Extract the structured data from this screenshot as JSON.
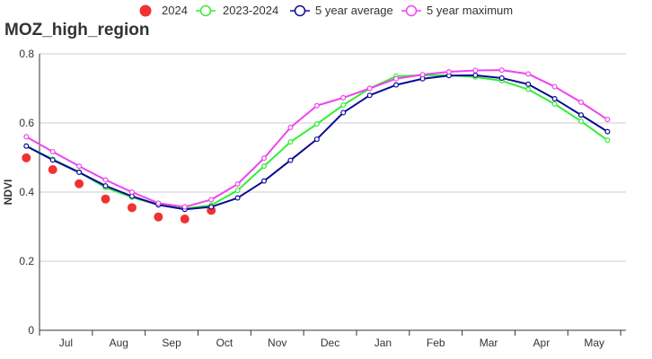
{
  "chart_data": {
    "type": "line",
    "title": "MOZ_high_region",
    "ylabel": "NDVI",
    "xlabel": "",
    "ylim": [
      0,
      0.8
    ],
    "yticks": [
      0,
      0.2,
      0.4,
      0.6,
      0.8
    ],
    "ytick_labels": [
      "0",
      "0.2",
      "0.4",
      "0.6",
      "0.8"
    ],
    "x_start": 0.5,
    "x_end": 22.7,
    "month_labels": [
      "Jul",
      "Aug",
      "Sep",
      "Oct",
      "Nov",
      "Dec",
      "Jan",
      "Feb",
      "Mar",
      "Apr",
      "May"
    ],
    "legend_position": "top",
    "grid": true,
    "series": [
      {
        "name": "2024",
        "style": "dots",
        "color": "#f03232",
        "x": [
          0,
          1,
          2,
          3,
          4,
          5,
          6,
          7
        ],
        "values": [
          0.499,
          0.465,
          0.424,
          0.38,
          0.355,
          0.328,
          0.322,
          0.347
        ]
      },
      {
        "name": "2023-2024",
        "style": "line",
        "color": "#33ee33",
        "x": [
          0,
          1,
          2,
          3,
          4,
          5,
          6,
          7,
          8,
          9,
          10,
          11,
          12,
          13,
          14,
          15,
          16,
          17,
          18,
          19,
          20,
          21,
          22
        ],
        "values": [
          0.533,
          0.495,
          0.458,
          0.413,
          0.385,
          0.363,
          0.352,
          0.362,
          0.405,
          0.475,
          0.545,
          0.597,
          0.652,
          0.7,
          0.735,
          0.738,
          0.738,
          0.733,
          0.722,
          0.697,
          0.655,
          0.605,
          0.55
        ]
      },
      {
        "name": "5 year average",
        "style": "line",
        "color": "#0a0a96",
        "x": [
          0,
          1,
          2,
          3,
          4,
          5,
          6,
          7,
          8,
          9,
          10,
          11,
          12,
          13,
          14,
          15,
          16,
          17,
          18,
          19,
          20,
          21,
          22
        ],
        "values": [
          0.533,
          0.493,
          0.457,
          0.418,
          0.388,
          0.363,
          0.35,
          0.357,
          0.383,
          0.432,
          0.492,
          0.553,
          0.63,
          0.68,
          0.71,
          0.728,
          0.737,
          0.738,
          0.73,
          0.712,
          0.67,
          0.623,
          0.575
        ]
      },
      {
        "name": "5 year maximum",
        "style": "line",
        "color": "#ee44ee",
        "x": [
          0,
          1,
          2,
          3,
          4,
          5,
          6,
          7,
          8,
          9,
          10,
          11,
          12,
          13,
          14,
          15,
          16,
          17,
          18,
          19,
          20,
          21,
          22
        ],
        "values": [
          0.56,
          0.517,
          0.475,
          0.435,
          0.4,
          0.368,
          0.357,
          0.378,
          0.423,
          0.498,
          0.587,
          0.65,
          0.673,
          0.7,
          0.728,
          0.74,
          0.748,
          0.752,
          0.753,
          0.742,
          0.705,
          0.66,
          0.61
        ]
      }
    ]
  }
}
